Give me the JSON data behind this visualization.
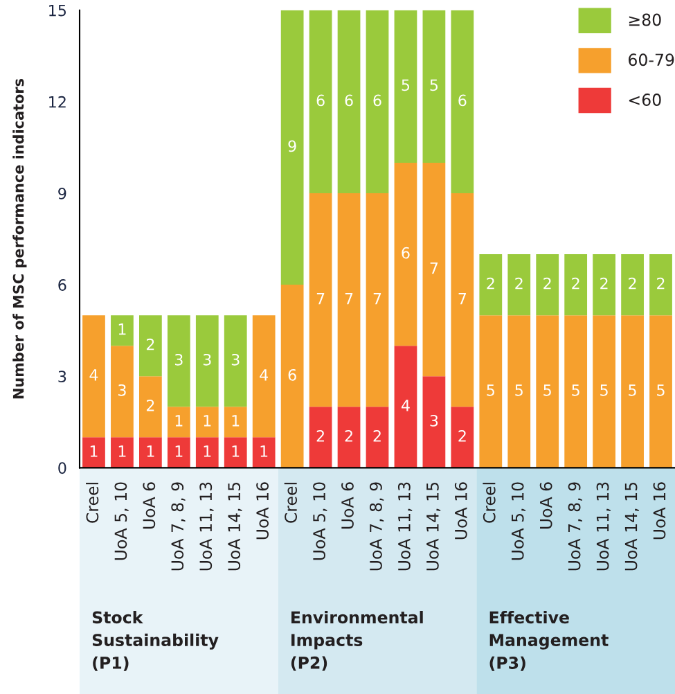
{
  "chart_data": {
    "type": "bar",
    "stacked": true,
    "ylabel": "Number of MSC performance indicators",
    "categories": [
      "Creel",
      "UoA 5, 10",
      "UoA 6",
      "UoA 7, 8, 9",
      "UoA 11, 13",
      "UoA 14, 15",
      "UoA 16",
      "Creel",
      "UoA 5, 10",
      "UoA 6",
      "UoA 7, 8, 9",
      "UoA 11, 13",
      "UoA 14, 15",
      "UoA 16",
      "Creel",
      "UoA 5, 10",
      "UoA 6",
      "UoA 7, 8, 9",
      "UoA 11, 13",
      "UoA 14, 15",
      "UoA 16"
    ],
    "series": [
      {
        "name": "<60",
        "color": "#ee3a39",
        "values": [
          1,
          1,
          1,
          1,
          1,
          1,
          1,
          null,
          2,
          2,
          2,
          4,
          3,
          2,
          null,
          null,
          null,
          null,
          null,
          null,
          null
        ]
      },
      {
        "name": "60-79",
        "color": "#f6a02d",
        "values": [
          4,
          3,
          2,
          1,
          1,
          1,
          4,
          6,
          7,
          7,
          7,
          6,
          7,
          7,
          5,
          5,
          5,
          5,
          5,
          5,
          5
        ]
      },
      {
        "name": "≥80",
        "color": "#9aca3c",
        "values": [
          null,
          1,
          2,
          3,
          3,
          3,
          null,
          9,
          6,
          6,
          6,
          5,
          5,
          6,
          2,
          2,
          2,
          2,
          2,
          2,
          2
        ]
      }
    ],
    "ylim": [
      0,
      15
    ],
    "yticks": [
      0,
      3,
      6,
      9,
      12,
      15
    ],
    "legend": "top right",
    "data_labels": true,
    "annotations": [
      "Stock\nSustainability\n(P1)",
      "Environmental\nImpacts\n(P2)",
      "Effective\nManagement\n(P3)"
    ]
  }
}
